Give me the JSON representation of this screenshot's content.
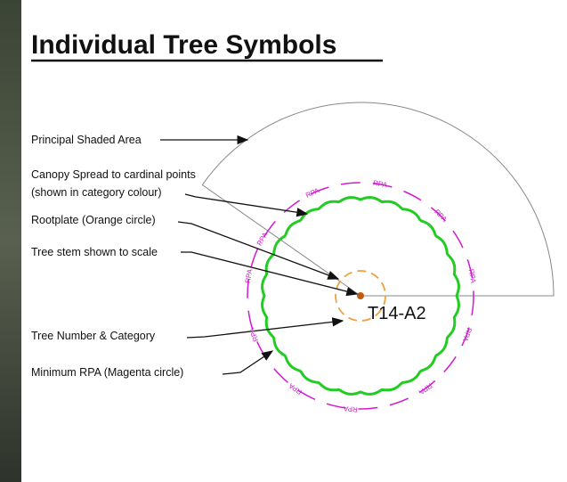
{
  "header": {
    "title": "Individual Tree Symbols"
  },
  "labels": {
    "principal_shaded_area": "Principal Shaded Area",
    "canopy_spread": "Canopy Spread to cardinal points",
    "canopy_spread_note": "(shown in category colour)",
    "rootplate": "Rootplate (Orange circle)",
    "tree_stem": "Tree stem shown to scale",
    "tree_number": "Tree Number & Category",
    "minimum_rpa": "Minimum RPA (Magenta circle)"
  },
  "symbol": {
    "tree_id": "T14-A2",
    "rpa_label": "RPA"
  }
}
